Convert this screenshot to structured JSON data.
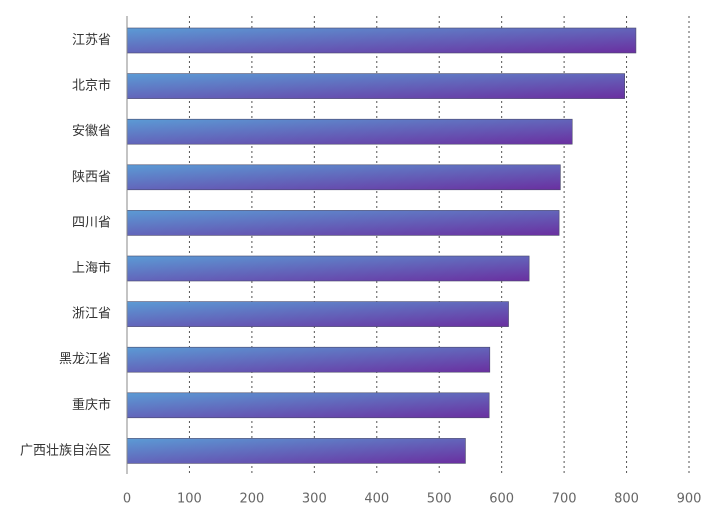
{
  "chart_data": {
    "type": "bar",
    "orientation": "horizontal",
    "title": "",
    "xlabel": "",
    "ylabel": "",
    "categories": [
      "江苏省",
      "北京市",
      "安徽省",
      "陕西省",
      "四川省",
      "上海市",
      "浙江省",
      "黑龙江省",
      "重庆市",
      "广西壮族自治区"
    ],
    "values": [
      815,
      797,
      713,
      694,
      692,
      644,
      611,
      581,
      580,
      542
    ],
    "xlim": [
      0,
      900
    ],
    "xticks": [
      "0",
      "100",
      "200",
      "300",
      "400",
      "500",
      "600",
      "700",
      "800",
      "900"
    ],
    "grid": "vertical dotted",
    "legend": "none",
    "colors": {
      "bar_start": "#5b9bd5",
      "bar_end": "#6a2fa0",
      "grid": "#555555",
      "axis": "#888888",
      "label": "#333333",
      "tick": "#666666"
    }
  }
}
